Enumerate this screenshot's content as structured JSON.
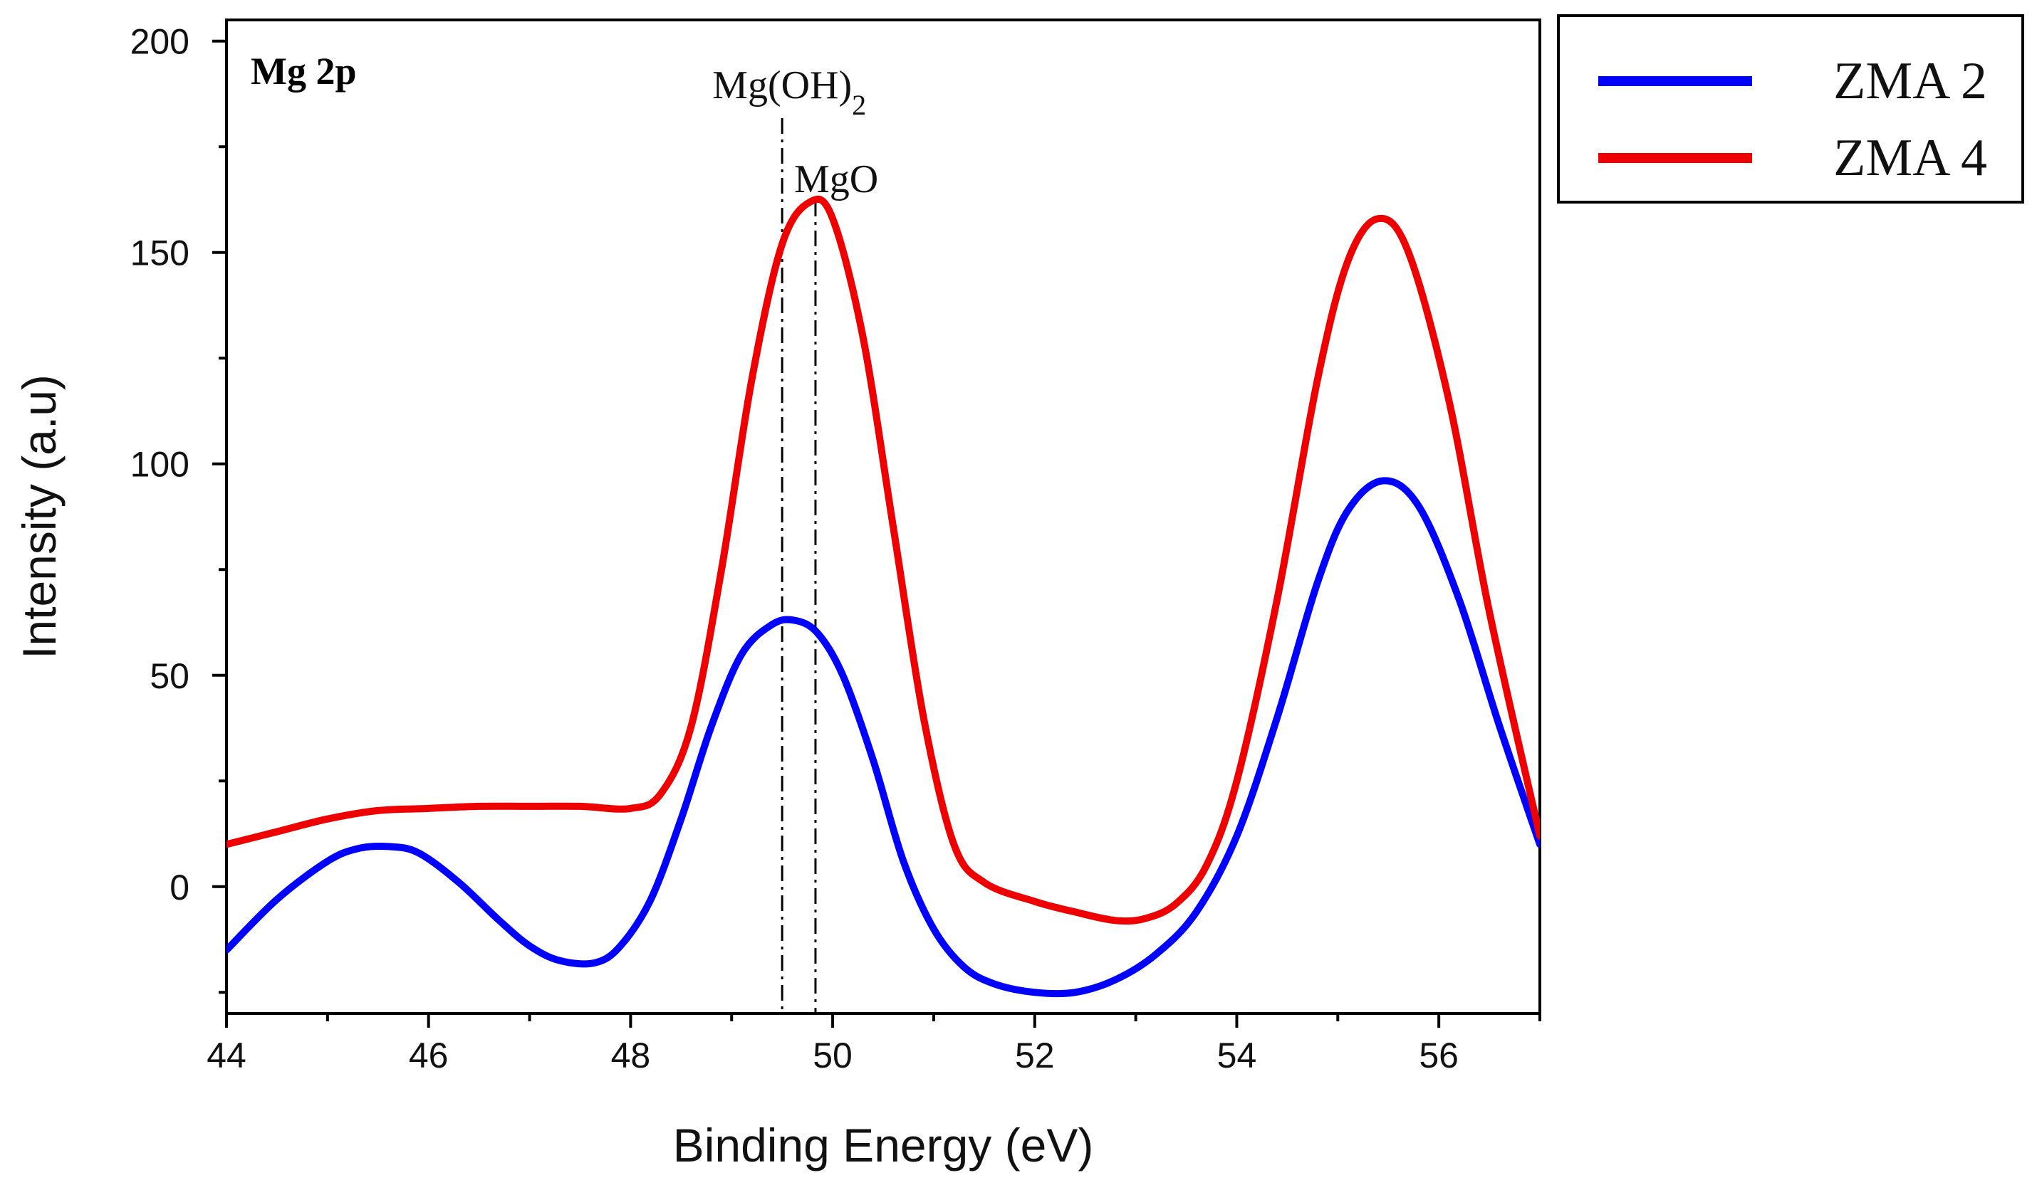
{
  "chart_data": {
    "type": "line",
    "xlabel": "Binding Energy (eV)",
    "ylabel": "Intensity (a.u)",
    "xlim": [
      44,
      57
    ],
    "ylim": [
      -30,
      205
    ],
    "xticks": [
      44,
      46,
      48,
      50,
      52,
      54,
      56
    ],
    "yticks": [
      0,
      50,
      100,
      150,
      200
    ],
    "panel_label": "Mg 2p",
    "legend_position": "outside-top-right",
    "annotations": [
      {
        "name": "Mg(OH)2",
        "text_main": "Mg(OH)",
        "text_sub": "2",
        "x": 49.5,
        "style": "dash-dot"
      },
      {
        "name": "MgO",
        "text_main": "MgO",
        "text_sub": "",
        "x": 49.83,
        "style": "dash-dot"
      }
    ],
    "series": [
      {
        "name": "ZMA 2",
        "color": "#0000ff",
        "x": [
          44.0,
          44.5,
          45.0,
          45.3,
          45.6,
          45.9,
          46.3,
          46.7,
          47.0,
          47.3,
          47.65,
          47.9,
          48.2,
          48.5,
          48.8,
          49.1,
          49.4,
          49.62,
          49.85,
          50.1,
          50.4,
          50.7,
          51.0,
          51.3,
          51.6,
          52.0,
          52.4,
          52.8,
          53.2,
          53.6,
          54.0,
          54.4,
          54.8,
          55.1,
          55.45,
          55.8,
          56.2,
          56.6,
          57.0
        ],
        "values": [
          -15,
          -3,
          6,
          9,
          9.5,
          8,
          1,
          -8,
          -14,
          -17.5,
          -18,
          -14,
          -3,
          16,
          38,
          55,
          62,
          63,
          60,
          50,
          30,
          6,
          -10,
          -19,
          -23,
          -25,
          -25,
          -22,
          -16,
          -6,
          12,
          40,
          72,
          89,
          96,
          90,
          68,
          38,
          10
        ]
      },
      {
        "name": "ZMA 4",
        "color": "#ee0000",
        "x": [
          44.0,
          44.5,
          45.0,
          45.5,
          46.0,
          46.5,
          47.0,
          47.5,
          48.0,
          48.3,
          48.6,
          48.9,
          49.2,
          49.5,
          49.78,
          50.0,
          50.3,
          50.6,
          50.9,
          51.2,
          51.5,
          52.0,
          52.4,
          52.8,
          53.1,
          53.4,
          53.7,
          54.0,
          54.4,
          54.8,
          55.1,
          55.4,
          55.7,
          56.1,
          56.5,
          57.0
        ],
        "values": [
          10,
          13,
          16,
          18,
          18.5,
          19,
          19,
          19,
          18.5,
          22,
          38,
          75,
          120,
          152,
          162,
          158,
          130,
          85,
          40,
          10,
          1,
          -3.5,
          -6,
          -8,
          -7.5,
          -4,
          5,
          25,
          68,
          120,
          148,
          158,
          150,
          115,
          65,
          12
        ]
      }
    ]
  }
}
